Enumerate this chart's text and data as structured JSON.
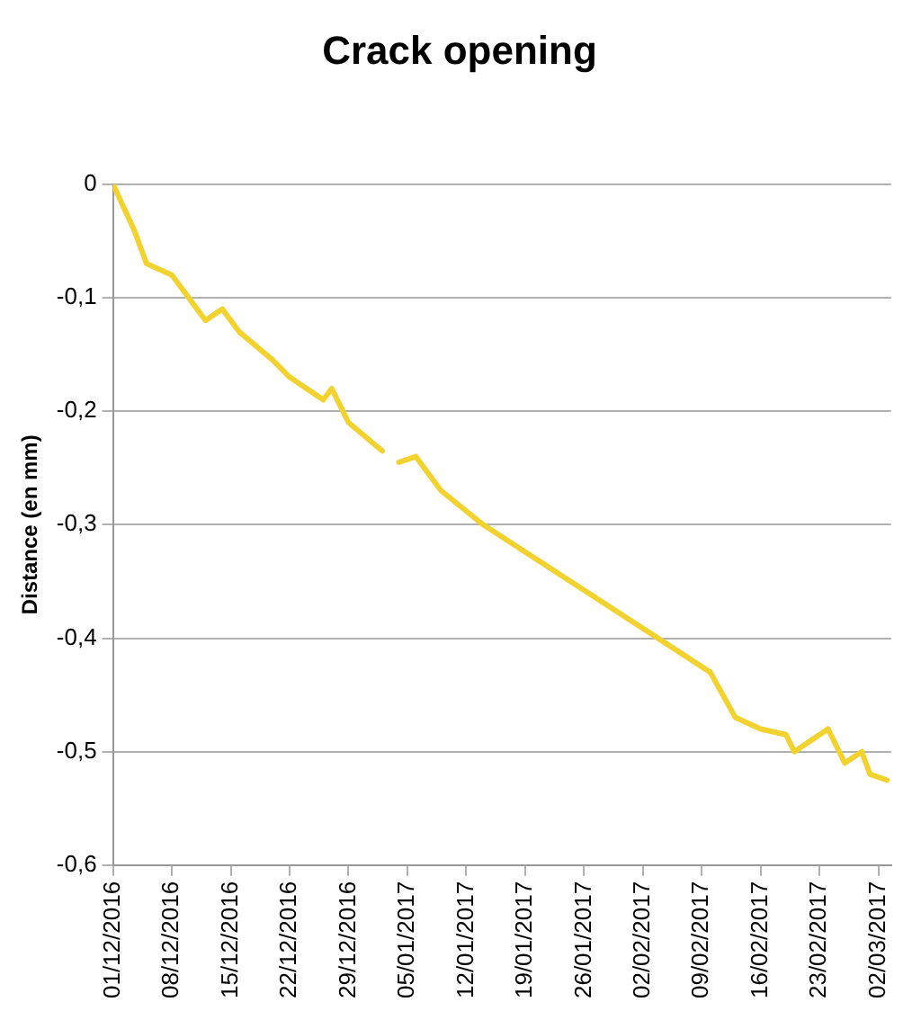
{
  "chart_data": {
    "type": "line",
    "title": "Crack opening",
    "ylabel": "Distance (en mm)",
    "x": [
      "2016-12-01",
      "2016-12-03T12:00",
      "2016-12-05",
      "2016-12-08",
      "2016-12-10",
      "2016-12-12",
      "2016-12-14",
      "2016-12-16",
      "2016-12-20",
      "2016-12-22",
      "2016-12-26",
      "2016-12-27",
      "2016-12-29",
      "2017-01-02",
      "2017-01-03",
      "2017-01-04",
      "2017-01-06",
      "2017-01-07",
      "2017-01-09",
      "2017-01-14",
      "2017-02-10",
      "2017-02-13",
      "2017-02-16",
      "2017-02-19",
      "2017-02-20",
      "2017-02-22",
      "2017-02-24",
      "2017-02-26",
      "2017-02-28",
      "2017-03-01",
      "2017-03-03"
    ],
    "series": [
      {
        "color": "#f2d22e",
        "values": [
          0,
          -0.04,
          -0.07,
          -0.08,
          -0.1,
          -0.12,
          -0.11,
          -0.13,
          -0.155,
          -0.17,
          -0.19,
          -0.18,
          -0.21,
          -0.235,
          null,
          -0.245,
          -0.24,
          -0.25,
          -0.27,
          -0.3,
          -0.43,
          -0.47,
          -0.48,
          -0.485,
          -0.5,
          -0.49,
          -0.48,
          -0.51,
          -0.5,
          -0.52,
          -0.525
        ]
      }
    ],
    "xlim": [
      "2016-12-01",
      "2017-03-03T12:00"
    ],
    "xticks": [
      {
        "value": "2016-12-01",
        "label": "01/12/2016"
      },
      {
        "value": "2016-12-08",
        "label": "08/12/2016"
      },
      {
        "value": "2016-12-15",
        "label": "15/12/2016"
      },
      {
        "value": "2016-12-22",
        "label": "22/12/2016"
      },
      {
        "value": "2016-12-29",
        "label": "29/12/2016"
      },
      {
        "value": "2017-01-05",
        "label": "05/01/2017"
      },
      {
        "value": "2017-01-12",
        "label": "12/01/2017"
      },
      {
        "value": "2017-01-19",
        "label": "19/01/2017"
      },
      {
        "value": "2017-01-26",
        "label": "26/01/2017"
      },
      {
        "value": "2017-02-02",
        "label": "02/02/2017"
      },
      {
        "value": "2017-02-09",
        "label": "09/02/2017"
      },
      {
        "value": "2017-02-16",
        "label": "16/02/2017"
      },
      {
        "value": "2017-02-23",
        "label": "23/02/2017"
      },
      {
        "value": "2017-03-02",
        "label": "02/03/2017"
      }
    ],
    "ylim": [
      -0.6,
      0
    ],
    "yticks": [
      {
        "value": 0,
        "label": "0"
      },
      {
        "value": -0.1,
        "label": "-0,1"
      },
      {
        "value": -0.2,
        "label": "-0,2"
      },
      {
        "value": -0.3,
        "label": "-0,3"
      },
      {
        "value": -0.4,
        "label": "-0,4"
      },
      {
        "value": -0.5,
        "label": "-0,5"
      },
      {
        "value": -0.6,
        "label": "-0,6"
      }
    ],
    "grid": "y",
    "legend": false,
    "marker": "none",
    "line_style": "solid"
  }
}
